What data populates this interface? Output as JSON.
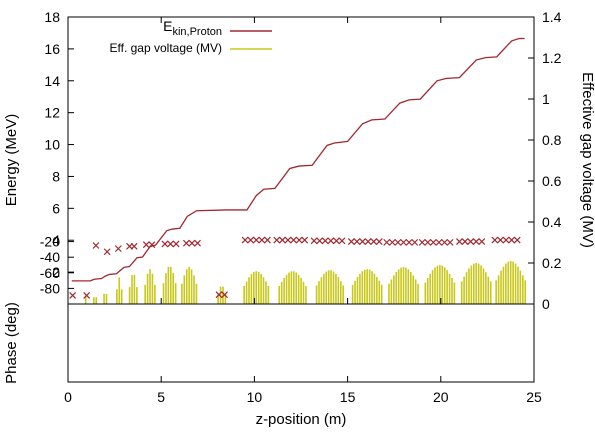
{
  "chart_data": [
    {
      "panel": "energy_and_gap_voltage",
      "type": "line",
      "xlabel": "z-position (m)",
      "ylabel": "Energy (MeV)",
      "y2label": "Effective gap voltage (MV)",
      "xlim": [
        0,
        25
      ],
      "ylim": [
        0,
        18
      ],
      "y2lim": [
        0,
        1.4
      ],
      "xticks": [
        0,
        5,
        10,
        15,
        20,
        25
      ],
      "yticks": [
        2,
        4,
        6,
        8,
        10,
        12,
        14,
        16,
        18
      ],
      "y2ticks": [
        0,
        0.2,
        0.4,
        0.6,
        0.8,
        1,
        1.2,
        1.4
      ],
      "legend_position": "top-left",
      "legend": [
        {
          "label_main": "E",
          "label_sub": "kin,Proton",
          "color": "#a02830"
        },
        {
          "label_main": "Eff. gap voltage (MV)",
          "label_sub": "",
          "color": "#c8c81a"
        }
      ],
      "energy_series": {
        "color": "#a02830",
        "points": [
          [
            0.2,
            1.45
          ],
          [
            1.2,
            1.45
          ],
          [
            1.4,
            1.55
          ],
          [
            1.8,
            1.6
          ],
          [
            2.0,
            1.75
          ],
          [
            2.2,
            1.85
          ],
          [
            2.6,
            1.9
          ],
          [
            3.0,
            2.3
          ],
          [
            3.3,
            2.35
          ],
          [
            3.7,
            2.9
          ],
          [
            4.0,
            2.95
          ],
          [
            4.4,
            3.6
          ],
          [
            4.7,
            3.7
          ],
          [
            5.3,
            4.6
          ],
          [
            5.6,
            4.7
          ],
          [
            6.0,
            4.75
          ],
          [
            6.4,
            5.5
          ],
          [
            6.9,
            5.85
          ],
          [
            8.5,
            5.9
          ],
          [
            9.6,
            5.9
          ],
          [
            10.1,
            6.8
          ],
          [
            10.5,
            7.2
          ],
          [
            11.1,
            7.25
          ],
          [
            11.9,
            8.5
          ],
          [
            12.4,
            8.65
          ],
          [
            13.1,
            8.7
          ],
          [
            13.9,
            9.95
          ],
          [
            14.3,
            10.1
          ],
          [
            15.0,
            10.2
          ],
          [
            15.8,
            11.3
          ],
          [
            16.3,
            11.55
          ],
          [
            17.0,
            11.6
          ],
          [
            17.8,
            12.6
          ],
          [
            18.3,
            12.8
          ],
          [
            18.9,
            12.85
          ],
          [
            19.8,
            14.0
          ],
          [
            20.3,
            14.15
          ],
          [
            21.0,
            14.2
          ],
          [
            21.9,
            15.3
          ],
          [
            22.4,
            15.45
          ],
          [
            23.0,
            15.5
          ],
          [
            23.8,
            16.5
          ],
          [
            24.2,
            16.65
          ],
          [
            24.5,
            16.65
          ]
        ]
      },
      "gap_voltage_series": {
        "color": "#c8c81a",
        "clusters": [
          {
            "center": 0.95,
            "n": 1,
            "peak": 0.04
          },
          {
            "center": 1.45,
            "n": 2,
            "peak": 0.06
          },
          {
            "center": 2.0,
            "n": 2,
            "peak": 0.09
          },
          {
            "center": 2.75,
            "n": 3,
            "peak": 0.13
          },
          {
            "center": 3.5,
            "n": 4,
            "peak": 0.15
          },
          {
            "center": 4.4,
            "n": 5,
            "peak": 0.17
          },
          {
            "center": 5.45,
            "n": 6,
            "peak": 0.185
          },
          {
            "center": 6.5,
            "n": 7,
            "peak": 0.18
          },
          {
            "center": 8.25,
            "n": 4,
            "peak": 0.09
          },
          {
            "center": 10.1,
            "n": 11,
            "peak": 0.16
          },
          {
            "center": 12.05,
            "n": 12,
            "peak": 0.16
          },
          {
            "center": 14.05,
            "n": 12,
            "peak": 0.165
          },
          {
            "center": 16.05,
            "n": 13,
            "peak": 0.17
          },
          {
            "center": 18.0,
            "n": 13,
            "peak": 0.18
          },
          {
            "center": 19.95,
            "n": 13,
            "peak": 0.19
          },
          {
            "center": 21.9,
            "n": 13,
            "peak": 0.2
          },
          {
            "center": 23.75,
            "n": 13,
            "peak": 0.21
          }
        ]
      }
    },
    {
      "panel": "phase",
      "type": "scatter",
      "xlabel": "z-position (m)",
      "ylabel": "Phase (deg)",
      "xlim": [
        0,
        25
      ],
      "ylim": [
        -100,
        0
      ],
      "yticks": [
        -80,
        -60,
        -40,
        -20
      ],
      "color": "#a02830",
      "marker": "x",
      "points": [
        [
          0.25,
          -89
        ],
        [
          1.0,
          -89
        ],
        [
          1.5,
          -25
        ],
        [
          2.1,
          -33
        ],
        [
          2.7,
          -29
        ],
        [
          3.3,
          -26
        ],
        [
          3.55,
          -26
        ],
        [
          4.2,
          -24
        ],
        [
          4.5,
          -24
        ],
        [
          5.2,
          -23
        ],
        [
          5.5,
          -23
        ],
        [
          5.8,
          -23
        ],
        [
          6.35,
          -22
        ],
        [
          6.65,
          -22
        ],
        [
          6.95,
          -22
        ],
        [
          8.1,
          -88
        ],
        [
          8.4,
          -88
        ],
        [
          9.5,
          -18
        ],
        [
          9.8,
          -18
        ],
        [
          10.1,
          -18
        ],
        [
          10.4,
          -18
        ],
        [
          10.7,
          -18
        ],
        [
          11.2,
          -18
        ],
        [
          11.5,
          -18
        ],
        [
          11.8,
          -18
        ],
        [
          12.1,
          -18
        ],
        [
          12.4,
          -18
        ],
        [
          12.7,
          -18
        ],
        [
          13.2,
          -19
        ],
        [
          13.5,
          -19
        ],
        [
          13.8,
          -19
        ],
        [
          14.1,
          -19
        ],
        [
          14.4,
          -19
        ],
        [
          14.7,
          -19
        ],
        [
          15.2,
          -20
        ],
        [
          15.5,
          -20
        ],
        [
          15.8,
          -20
        ],
        [
          16.1,
          -20
        ],
        [
          16.4,
          -20
        ],
        [
          16.7,
          -20
        ],
        [
          17.1,
          -21
        ],
        [
          17.4,
          -21
        ],
        [
          17.7,
          -21
        ],
        [
          18.0,
          -21
        ],
        [
          18.3,
          -21
        ],
        [
          18.6,
          -21
        ],
        [
          19.0,
          -21
        ],
        [
          19.3,
          -21
        ],
        [
          19.6,
          -21
        ],
        [
          19.9,
          -21
        ],
        [
          20.2,
          -21
        ],
        [
          20.5,
          -21
        ],
        [
          21.0,
          -20
        ],
        [
          21.3,
          -20
        ],
        [
          21.6,
          -20
        ],
        [
          21.9,
          -20
        ],
        [
          22.2,
          -20
        ],
        [
          22.9,
          -18
        ],
        [
          23.2,
          -18
        ],
        [
          23.5,
          -18
        ],
        [
          23.8,
          -18
        ],
        [
          24.1,
          -18
        ]
      ]
    }
  ]
}
